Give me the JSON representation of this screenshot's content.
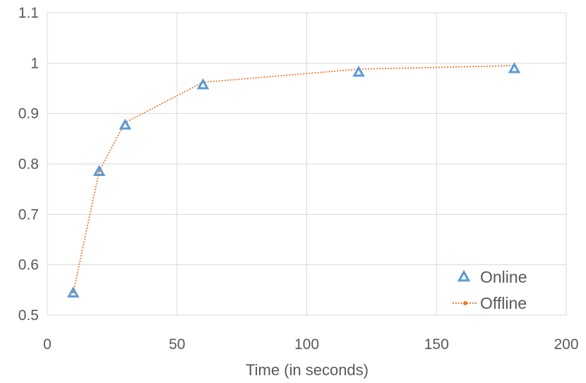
{
  "chart_data": {
    "type": "scatter",
    "title": "",
    "xlabel": "Time (in seconds)",
    "ylabel": "",
    "xlim": [
      0,
      200
    ],
    "ylim": [
      0.5,
      1.1
    ],
    "x_ticks": [
      "0",
      "50",
      "100",
      "150",
      "200"
    ],
    "y_ticks": [
      "0.5",
      "0.6",
      "0.7",
      "0.8",
      "0.9",
      "1",
      "1.1"
    ],
    "grid": true,
    "legend_position": "bottom-right",
    "series": [
      {
        "name": "Online",
        "style": "triangle-markers",
        "color": "#5B9BD5",
        "points": [
          [
            10,
            0.545
          ],
          [
            20,
            0.786
          ],
          [
            30,
            0.878
          ],
          [
            60,
            0.958
          ],
          [
            120,
            0.983
          ],
          [
            180,
            0.99
          ]
        ]
      },
      {
        "name": "Offline",
        "style": "dotted-line",
        "color": "#ED7D31",
        "points": [
          [
            10,
            0.545
          ],
          [
            20,
            0.786
          ],
          [
            30,
            0.882
          ],
          [
            60,
            0.962
          ],
          [
            120,
            0.988
          ],
          [
            180,
            0.995
          ]
        ]
      }
    ]
  }
}
